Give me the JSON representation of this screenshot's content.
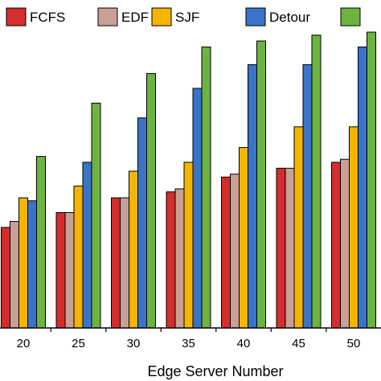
{
  "chart_data": {
    "type": "bar",
    "xlabel": "Edge Server Number",
    "ylabel": "",
    "title": "",
    "categories": [
      "20",
      "25",
      "30",
      "35",
      "40",
      "45",
      "50"
    ],
    "ylim": [
      0,
      100
    ],
    "grid": false,
    "legend_position": "top",
    "series": [
      {
        "name": "FCFS",
        "color": "#d42d2d",
        "values": [
          34,
          39,
          44,
          46,
          51,
          54,
          56
        ]
      },
      {
        "name": "EDF",
        "color": "#c8a095",
        "values": [
          36,
          39,
          44,
          47,
          52,
          54,
          57
        ]
      },
      {
        "name": "SJF",
        "color": "#f5b400",
        "values": [
          44,
          48,
          53,
          56,
          61,
          68,
          68
        ]
      },
      {
        "name": "Detour",
        "color": "#3a74c8",
        "values": [
          43,
          56,
          71,
          81,
          89,
          89,
          95
        ]
      },
      {
        "name": "",
        "color": "#6cb33f",
        "values": [
          58,
          76,
          86,
          95,
          97,
          99,
          100
        ]
      }
    ]
  }
}
